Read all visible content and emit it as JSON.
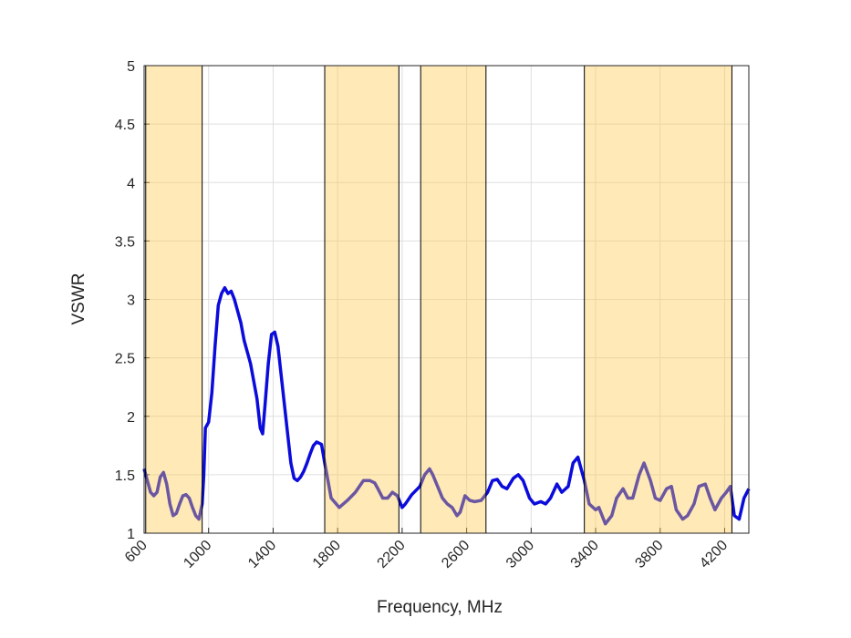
{
  "chart_data": {
    "type": "line",
    "xlabel": "Frequency, MHz",
    "ylabel": "VSWR",
    "x": [
      600,
      620,
      640,
      660,
      680,
      700,
      720,
      740,
      760,
      780,
      800,
      820,
      840,
      860,
      880,
      900,
      920,
      940,
      960,
      970,
      980,
      1000,
      1020,
      1040,
      1060,
      1080,
      1100,
      1120,
      1140,
      1160,
      1180,
      1200,
      1220,
      1240,
      1260,
      1280,
      1300,
      1320,
      1335,
      1350,
      1370,
      1390,
      1410,
      1430,
      1450,
      1470,
      1490,
      1510,
      1530,
      1550,
      1570,
      1590,
      1610,
      1630,
      1650,
      1670,
      1700,
      1720,
      1760,
      1810,
      1860,
      1910,
      1960,
      2000,
      2030,
      2050,
      2080,
      2110,
      2140,
      2170,
      2200,
      2220,
      2260,
      2310,
      2340,
      2370,
      2390,
      2420,
      2450,
      2480,
      2510,
      2540,
      2560,
      2590,
      2620,
      2650,
      2690,
      2730,
      2760,
      2790,
      2820,
      2850,
      2890,
      2920,
      2950,
      2990,
      3020,
      3060,
      3090,
      3120,
      3160,
      3190,
      3230,
      3260,
      3290,
      3330,
      3360,
      3400,
      3420,
      3460,
      3500,
      3530,
      3570,
      3600,
      3630,
      3670,
      3700,
      3740,
      3770,
      3800,
      3840,
      3870,
      3900,
      3940,
      3970,
      4010,
      4040,
      4080,
      4110,
      4140,
      4180,
      4210,
      4235,
      4260,
      4290,
      4320,
      4350
    ],
    "values": [
      1.55,
      1.45,
      1.35,
      1.32,
      1.35,
      1.48,
      1.52,
      1.42,
      1.25,
      1.15,
      1.17,
      1.25,
      1.32,
      1.33,
      1.3,
      1.22,
      1.15,
      1.12,
      1.25,
      1.5,
      1.9,
      1.95,
      2.2,
      2.6,
      2.95,
      3.05,
      3.1,
      3.05,
      3.07,
      3.0,
      2.9,
      2.8,
      2.65,
      2.55,
      2.45,
      2.3,
      2.15,
      1.9,
      1.85,
      2.1,
      2.45,
      2.7,
      2.72,
      2.6,
      2.35,
      2.1,
      1.85,
      1.6,
      1.47,
      1.45,
      1.48,
      1.53,
      1.6,
      1.68,
      1.75,
      1.78,
      1.76,
      1.6,
      1.3,
      1.22,
      1.28,
      1.35,
      1.45,
      1.45,
      1.43,
      1.38,
      1.3,
      1.3,
      1.35,
      1.32,
      1.22,
      1.25,
      1.33,
      1.4,
      1.5,
      1.55,
      1.5,
      1.4,
      1.3,
      1.25,
      1.22,
      1.15,
      1.18,
      1.32,
      1.28,
      1.27,
      1.28,
      1.35,
      1.45,
      1.46,
      1.4,
      1.38,
      1.47,
      1.5,
      1.45,
      1.3,
      1.25,
      1.27,
      1.25,
      1.3,
      1.42,
      1.35,
      1.4,
      1.6,
      1.65,
      1.45,
      1.25,
      1.2,
      1.22,
      1.08,
      1.15,
      1.3,
      1.38,
      1.3,
      1.3,
      1.5,
      1.6,
      1.45,
      1.3,
      1.28,
      1.38,
      1.4,
      1.2,
      1.12,
      1.15,
      1.25,
      1.4,
      1.42,
      1.3,
      1.2,
      1.3,
      1.35,
      1.4,
      1.15,
      1.12,
      1.3,
      1.38
    ],
    "color": "#0b0bdc",
    "bands": [
      [
        610,
        960
      ],
      [
        1720,
        2180
      ],
      [
        2315,
        2720
      ],
      [
        3330,
        4245
      ]
    ],
    "band_color": "#fcc84a",
    "band_alpha": 0.4,
    "xlim": [
      600,
      4350
    ],
    "ylim": [
      1,
      5
    ],
    "xticks": [
      600,
      1000,
      1400,
      1800,
      2200,
      2600,
      3000,
      3400,
      3800,
      4200
    ],
    "yticks": [
      1,
      1.5,
      2,
      2.5,
      3,
      3.5,
      4,
      4.5,
      5
    ],
    "grid": true
  }
}
